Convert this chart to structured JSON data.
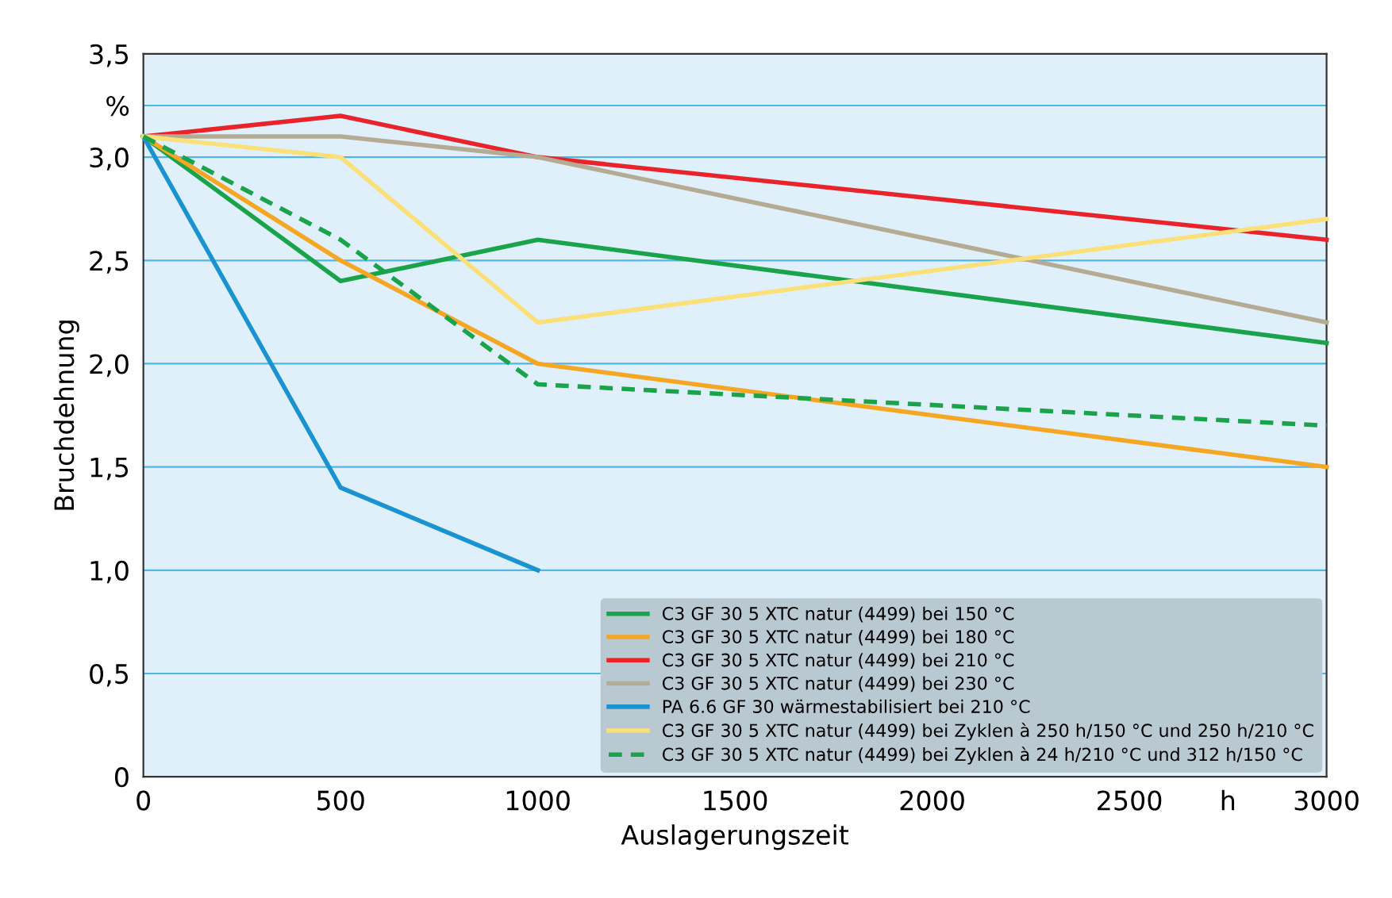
{
  "chart_data": {
    "type": "line",
    "xlabel": "Auslagerungszeit",
    "ylabel": "Bruchdehnung",
    "x": [
      0,
      500,
      1000,
      3000
    ],
    "xlim": [
      0,
      3000
    ],
    "ylim": [
      0,
      3.5
    ],
    "xticks": [
      0,
      500,
      1000,
      1500,
      2000,
      2500,
      {
        "value": 2750,
        "label": "h"
      },
      3000
    ],
    "yticks": [
      {
        "value": 0,
        "label": "0"
      },
      {
        "value": 0.5,
        "label": "0,5"
      },
      {
        "value": 1.0,
        "label": "1,0"
      },
      {
        "value": 1.5,
        "label": "1,5"
      },
      {
        "value": 2.0,
        "label": "2,0"
      },
      {
        "value": 2.5,
        "label": "2,5"
      },
      {
        "value": 3.0,
        "label": "3,0"
      },
      {
        "value": 3.25,
        "label": "%"
      },
      {
        "value": 3.5,
        "label": "3,5"
      }
    ],
    "grid": "y",
    "legend": "bottom right",
    "series": [
      {
        "name": "C3 GF 30 5 XTC natur (4499) bei 150 °C",
        "color": "#1aa34a",
        "values": [
          3.1,
          2.4,
          2.6,
          2.1
        ]
      },
      {
        "name": "C3 GF 30 5 XTC natur (4499) bei 180 °C",
        "color": "#f5a623",
        "values": [
          3.1,
          2.5,
          2.0,
          1.5
        ]
      },
      {
        "name": "C3 GF 30 5 XTC natur (4499) bei 210 °C",
        "color": "#e8242a",
        "values": [
          3.1,
          3.2,
          3.0,
          2.6
        ]
      },
      {
        "name": "C3 GF 30 5 XTC natur (4499) bei 230 °C",
        "color": "#b5aa94",
        "values": [
          3.1,
          3.1,
          3.0,
          2.2
        ]
      },
      {
        "name": "PA 6.6 GF 30 wärmestabilisiert bei 210 °C",
        "color": "#1b93d1",
        "values": [
          3.1,
          1.4,
          1.0,
          null
        ]
      },
      {
        "name": "C3 GF 30 5 XTC natur (4499) bei Zyklen à 250 h/150 °C und 250 h/210 °C",
        "color": "#fbe07a",
        "values": [
          3.1,
          3.0,
          2.2,
          2.7
        ]
      },
      {
        "name": "C3 GF 30 5 XTC natur (4499) bei Zyklen à 24 h/210 °C und 312 h/150 °C",
        "color": "#1aa34a",
        "values": [
          3.1,
          2.6,
          1.9,
          1.7
        ],
        "line_style": "dashed"
      }
    ]
  }
}
